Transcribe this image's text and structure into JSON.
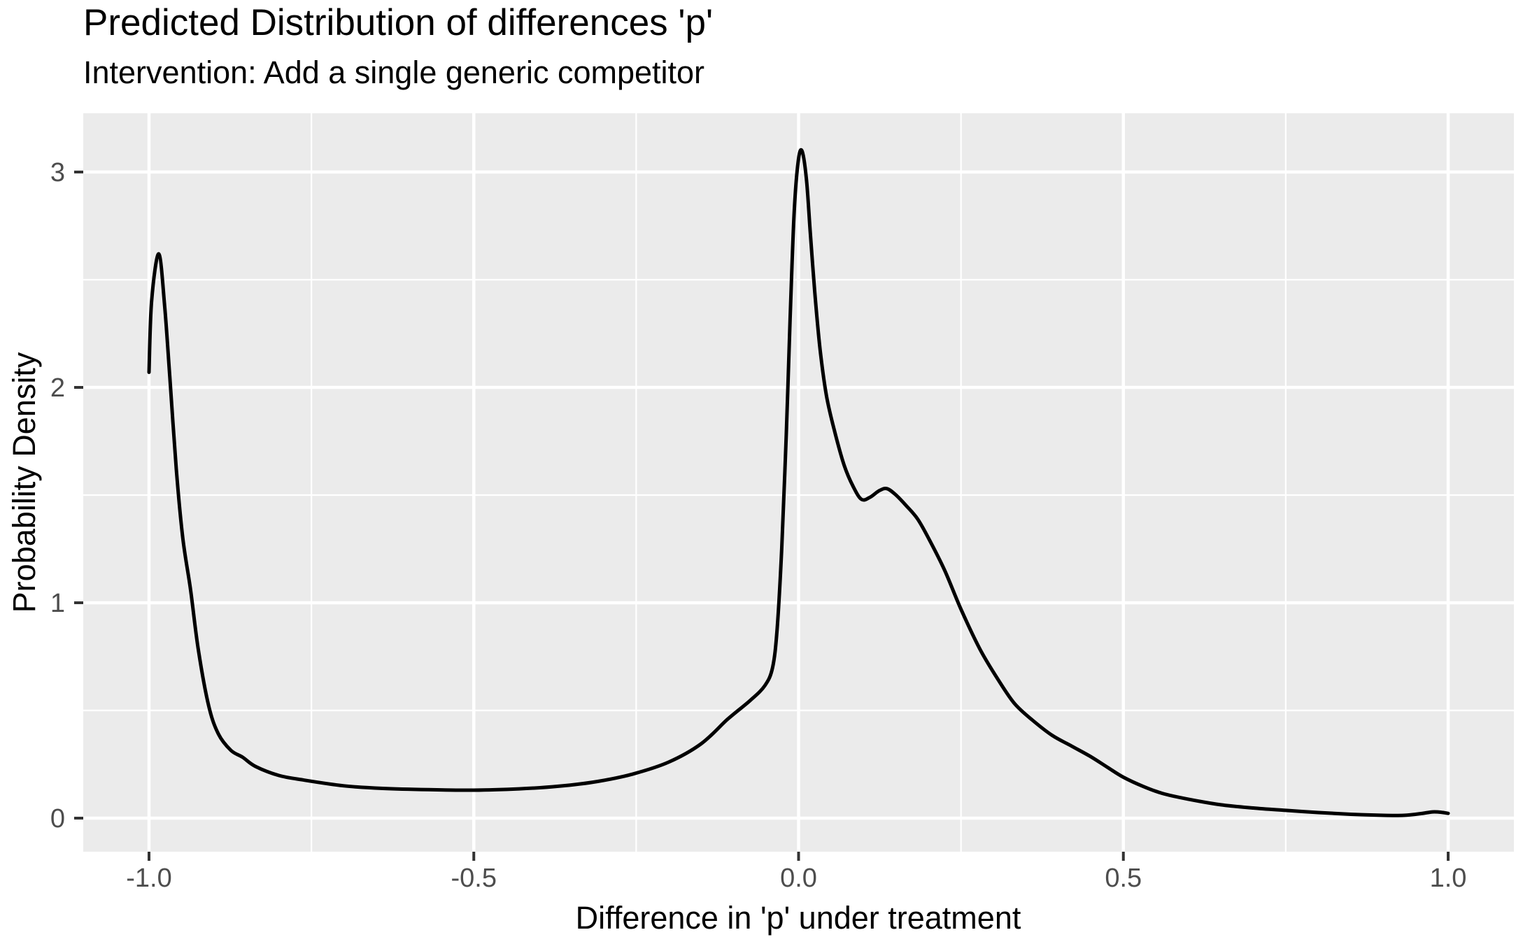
{
  "title": "Predicted Distribution of differences 'p'",
  "subtitle": "Intervention: Add a single generic competitor",
  "chart_data": {
    "type": "line",
    "subtype": "density-curve",
    "title": "Predicted Distribution of differences 'p'",
    "subtitle": "Intervention: Add a single generic competitor",
    "xlabel": "Difference in 'p' under treatment",
    "ylabel": "Probability Density",
    "xlim": [
      -1.1,
      1.1
    ],
    "ylim": [
      -0.155,
      3.27
    ],
    "grid": true,
    "legend": "none",
    "theme": "ggplot2-gray",
    "x_ticks": {
      "values": [
        -1.0,
        -0.5,
        0.0,
        0.5,
        1.0
      ],
      "labels": [
        "-1.0",
        "-0.5",
        "0.0",
        "0.5",
        "1.0"
      ]
    },
    "y_ticks": {
      "values": [
        0,
        1,
        2,
        3
      ],
      "labels": [
        "0",
        "1",
        "2",
        "3"
      ]
    },
    "x_minor_gridlines": [
      -0.75,
      -0.25,
      0.25,
      0.75
    ],
    "y_minor_gridlines": [
      0.5,
      1.5,
      2.5
    ],
    "annotations": {
      "left_peak": {
        "x": -0.985,
        "y": 2.62
      },
      "main_peak": {
        "x": 0.005,
        "y": 3.1
      },
      "shoulder_bump": {
        "x": 0.135,
        "y": 1.53
      },
      "valley": {
        "x": -0.5,
        "y": 0.13
      }
    },
    "colors": {
      "panel_background": "#EBEBEB",
      "gridline": "#FFFFFF",
      "curve": "#000000",
      "tick_mark": "#333333",
      "tick_label": "#4D4D4D",
      "title_text": "#000000",
      "page_background": "#FFFFFF"
    },
    "series": [
      {
        "name": "density",
        "points": [
          [
            -1.0,
            2.07
          ],
          [
            -0.996,
            2.4
          ],
          [
            -0.985,
            2.62
          ],
          [
            -0.976,
            2.38
          ],
          [
            -0.968,
            2.05
          ],
          [
            -0.958,
            1.62
          ],
          [
            -0.948,
            1.3
          ],
          [
            -0.936,
            1.06
          ],
          [
            -0.924,
            0.78
          ],
          [
            -0.908,
            0.52
          ],
          [
            -0.893,
            0.39
          ],
          [
            -0.874,
            0.315
          ],
          [
            -0.856,
            0.283
          ],
          [
            -0.836,
            0.24
          ],
          [
            -0.8,
            0.198
          ],
          [
            -0.76,
            0.176
          ],
          [
            -0.7,
            0.15
          ],
          [
            -0.64,
            0.138
          ],
          [
            -0.57,
            0.132
          ],
          [
            -0.5,
            0.13
          ],
          [
            -0.43,
            0.136
          ],
          [
            -0.37,
            0.148
          ],
          [
            -0.31,
            0.17
          ],
          [
            -0.255,
            0.205
          ],
          [
            -0.2,
            0.26
          ],
          [
            -0.15,
            0.345
          ],
          [
            -0.109,
            0.46
          ],
          [
            -0.075,
            0.545
          ],
          [
            -0.052,
            0.615
          ],
          [
            -0.04,
            0.7
          ],
          [
            -0.033,
            0.88
          ],
          [
            -0.026,
            1.25
          ],
          [
            -0.019,
            1.78
          ],
          [
            -0.013,
            2.32
          ],
          [
            -0.007,
            2.8
          ],
          [
            -0.001,
            3.04
          ],
          [
            0.005,
            3.1
          ],
          [
            0.012,
            2.97
          ],
          [
            0.018,
            2.72
          ],
          [
            0.025,
            2.44
          ],
          [
            0.033,
            2.18
          ],
          [
            0.043,
            1.96
          ],
          [
            0.056,
            1.79
          ],
          [
            0.07,
            1.64
          ],
          [
            0.084,
            1.54
          ],
          [
            0.097,
            1.48
          ],
          [
            0.11,
            1.49
          ],
          [
            0.124,
            1.52
          ],
          [
            0.136,
            1.53
          ],
          [
            0.15,
            1.5
          ],
          [
            0.166,
            1.45
          ],
          [
            0.183,
            1.39
          ],
          [
            0.2,
            1.3
          ],
          [
            0.225,
            1.15
          ],
          [
            0.25,
            0.97
          ],
          [
            0.28,
            0.78
          ],
          [
            0.31,
            0.63
          ],
          [
            0.333,
            0.53
          ],
          [
            0.36,
            0.455
          ],
          [
            0.39,
            0.385
          ],
          [
            0.42,
            0.335
          ],
          [
            0.45,
            0.285
          ],
          [
            0.476,
            0.235
          ],
          [
            0.5,
            0.19
          ],
          [
            0.53,
            0.148
          ],
          [
            0.56,
            0.115
          ],
          [
            0.6,
            0.088
          ],
          [
            0.65,
            0.062
          ],
          [
            0.7,
            0.047
          ],
          [
            0.75,
            0.036
          ],
          [
            0.8,
            0.026
          ],
          [
            0.85,
            0.018
          ],
          [
            0.9,
            0.013
          ],
          [
            0.932,
            0.013
          ],
          [
            0.958,
            0.021
          ],
          [
            0.976,
            0.029
          ],
          [
            0.99,
            0.027
          ],
          [
            1.0,
            0.022
          ]
        ]
      }
    ]
  }
}
